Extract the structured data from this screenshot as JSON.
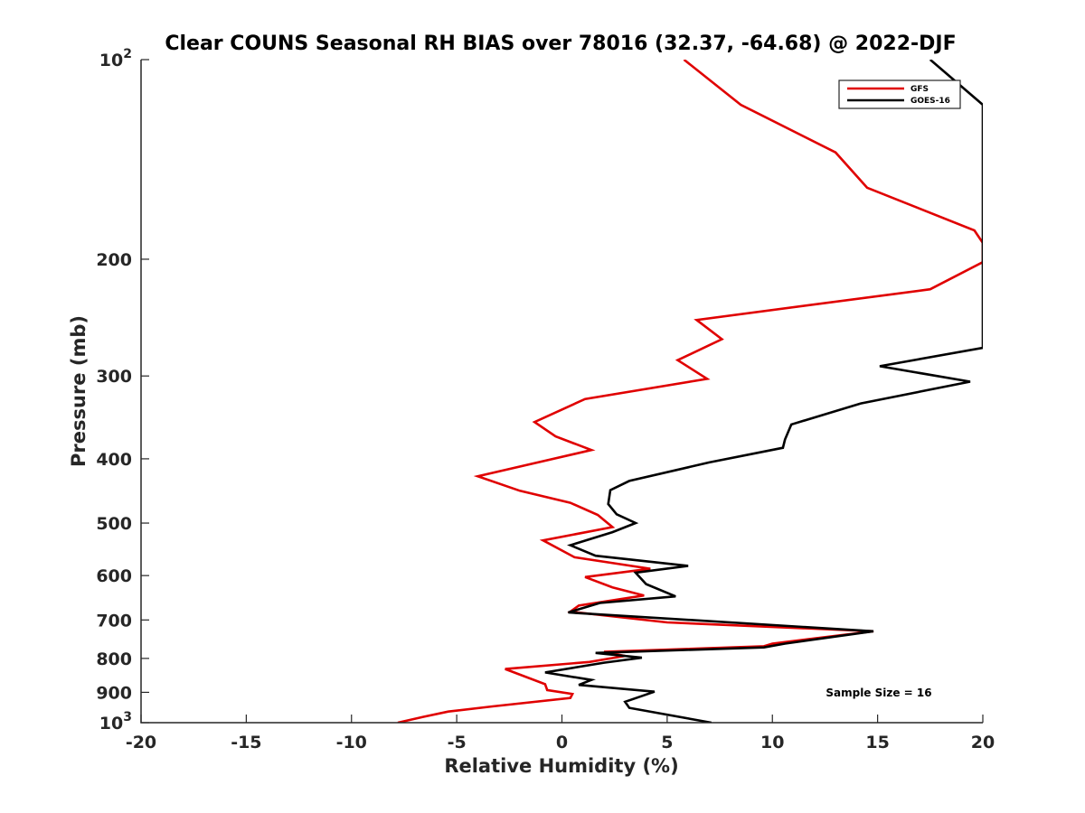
{
  "chart_data": {
    "type": "line",
    "title": "Clear COUNS Seasonal RH BIAS over 78016 (32.37, -64.68) @ 2022-DJF",
    "xlabel": "Relative Humidity (%)",
    "ylabel": "Pressure (mb)",
    "xlim": [
      -20,
      20
    ],
    "ylim": [
      100,
      1000
    ],
    "y_scale": "log",
    "y_reversed": true,
    "grid": false,
    "legend_position": "top-right",
    "x_ticks": [
      -20,
      -15,
      -10,
      -5,
      0,
      5,
      10,
      15,
      20
    ],
    "x_tick_labels": [
      "-20",
      "-15",
      "-10",
      "-5",
      "0",
      "5",
      "10",
      "15",
      "20"
    ],
    "y_ticks": [
      {
        "value": 100,
        "base": "10",
        "exp": "2",
        "label": ""
      },
      {
        "value": 200,
        "base": "",
        "exp": "",
        "label": "200"
      },
      {
        "value": 300,
        "base": "",
        "exp": "",
        "label": "300"
      },
      {
        "value": 400,
        "base": "",
        "exp": "",
        "label": "400"
      },
      {
        "value": 500,
        "base": "",
        "exp": "",
        "label": "500"
      },
      {
        "value": 600,
        "base": "",
        "exp": "",
        "label": "600"
      },
      {
        "value": 700,
        "base": "",
        "exp": "",
        "label": "700"
      },
      {
        "value": 800,
        "base": "",
        "exp": "",
        "label": "800"
      },
      {
        "value": 900,
        "base": "",
        "exp": "",
        "label": "900"
      },
      {
        "value": 1000,
        "base": "10",
        "exp": "3",
        "label": ""
      }
    ],
    "series": [
      {
        "name": "GFS",
        "color": "#e00000",
        "points": [
          [
            5.8,
            100
          ],
          [
            8.5,
            117
          ],
          [
            13,
            138
          ],
          [
            14.5,
            156
          ],
          [
            19.6,
            181
          ],
          [
            20,
            189
          ],
          [
            20,
            202
          ],
          [
            17.5,
            222
          ],
          [
            6.4,
            247
          ],
          [
            7.6,
            264
          ],
          [
            5.5,
            284
          ],
          [
            6.9,
            303
          ],
          [
            1.1,
            325
          ],
          [
            -1.3,
            352
          ],
          [
            -0.3,
            370
          ],
          [
            1.4,
            388
          ],
          [
            -4.0,
            425
          ],
          [
            -2.0,
            447
          ],
          [
            0.4,
            466
          ],
          [
            1.7,
            486
          ],
          [
            2.4,
            507
          ],
          [
            -0.9,
            531
          ],
          [
            0.6,
            563
          ],
          [
            4.2,
            586
          ],
          [
            1.1,
            603
          ],
          [
            2.4,
            625
          ],
          [
            3.9,
            643
          ],
          [
            0.8,
            666
          ],
          [
            0.4,
            680
          ],
          [
            5.0,
            706
          ],
          [
            14.8,
            728
          ],
          [
            10.0,
            760
          ],
          [
            9.6,
            767
          ],
          [
            2.0,
            782
          ],
          [
            3.0,
            793
          ],
          [
            1.3,
            810
          ],
          [
            -2.7,
            830
          ],
          [
            -0.8,
            875
          ],
          [
            -0.7,
            893
          ],
          [
            0.5,
            905
          ],
          [
            0.4,
            918
          ],
          [
            -3.3,
            945
          ],
          [
            -5.4,
            962
          ],
          [
            -6.6,
            980
          ],
          [
            -7.8,
            1000
          ]
        ]
      },
      {
        "name": "GOES-16",
        "color": "#000000",
        "points": [
          [
            17.5,
            100
          ],
          [
            20,
            117
          ],
          [
            20,
            272
          ],
          [
            15.1,
            290
          ],
          [
            19.4,
            306
          ],
          [
            14.2,
            330
          ],
          [
            10.9,
            355
          ],
          [
            10.6,
            374
          ],
          [
            10.5,
            385
          ],
          [
            7.0,
            405
          ],
          [
            3.2,
            432
          ],
          [
            2.3,
            446
          ],
          [
            2.2,
            468
          ],
          [
            2.6,
            485
          ],
          [
            3.5,
            500
          ],
          [
            2.4,
            516
          ],
          [
            0.4,
            540
          ],
          [
            1.6,
            560
          ],
          [
            6.0,
            580
          ],
          [
            3.5,
            594
          ],
          [
            4.0,
            618
          ],
          [
            5.4,
            645
          ],
          [
            1.8,
            660
          ],
          [
            0.3,
            682
          ],
          [
            14.8,
            728
          ],
          [
            10.6,
            760
          ],
          [
            9.6,
            770
          ],
          [
            1.6,
            785
          ],
          [
            3.8,
            798
          ],
          [
            2.0,
            812
          ],
          [
            -0.8,
            840
          ],
          [
            1.4,
            862
          ],
          [
            0.8,
            877
          ],
          [
            4.4,
            898
          ],
          [
            3.0,
            930
          ],
          [
            3.2,
            950
          ],
          [
            7.1,
            1000
          ]
        ]
      }
    ],
    "annotation": "Sample Size = 16"
  }
}
